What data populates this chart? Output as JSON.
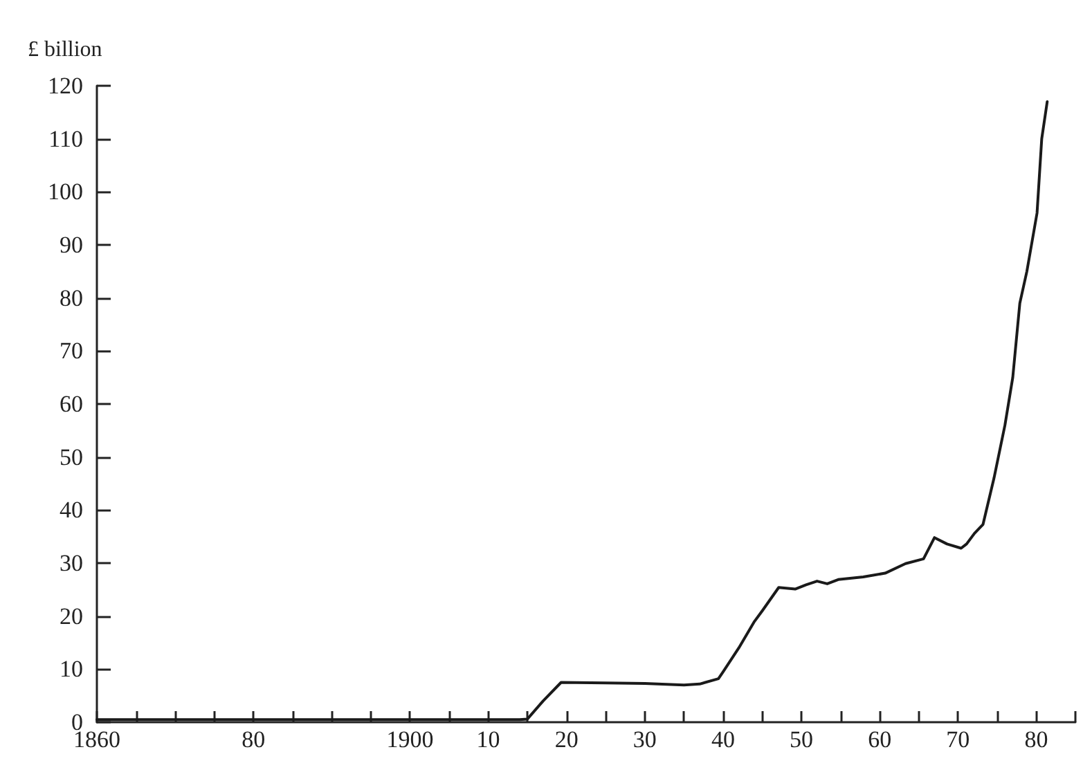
{
  "chart_data": {
    "type": "line",
    "ylabel": "£ billion",
    "x": [
      1860,
      1880,
      1900,
      1914,
      1915,
      1917,
      1919.3,
      1925,
      1930,
      1935,
      1937,
      1939.4,
      1940,
      1942,
      1944,
      1945,
      1947.1,
      1949.2,
      1950.6,
      1952,
      1953.3,
      1954.7,
      1957.9,
      1960.7,
      1963.3,
      1965.6,
      1967,
      1968.6,
      1970.4,
      1971.1,
      1972.1,
      1973.2,
      1974.6,
      1976,
      1977,
      1977.9,
      1978.8,
      1980.1,
      1980.7,
      1981.4
    ],
    "series": [
      {
        "color": "#1a1a1a",
        "values": [
          0.5,
          0.5,
          0.5,
          0.5,
          0.6,
          4,
          7.5,
          7.4,
          7.3,
          7.0,
          7.2,
          8.2,
          9.5,
          14,
          19,
          21,
          25.4,
          25.1,
          25.9,
          26.6,
          26.1,
          26.9,
          27.4,
          28.1,
          29.9,
          30.8,
          34.8,
          33.6,
          32.8,
          33.6,
          35.6,
          37.3,
          46,
          56,
          65,
          79,
          85,
          96,
          110,
          117
        ]
      }
    ],
    "xlim": [
      1860,
      1985
    ],
    "xticks": [
      1860,
      {
        "value": 1865,
        "label": null
      },
      {
        "value": 1870,
        "label": null
      },
      {
        "value": 1875,
        "label": null
      },
      {
        "value": 1880,
        "label": "80"
      },
      {
        "value": 1885,
        "label": null
      },
      {
        "value": 1890,
        "label": null
      },
      {
        "value": 1895,
        "label": null
      },
      1900,
      {
        "value": 1905,
        "label": null
      },
      {
        "value": 1910,
        "label": "10"
      },
      {
        "value": 1915,
        "label": null
      },
      {
        "value": 1920,
        "label": "20"
      },
      {
        "value": 1925,
        "label": null
      },
      {
        "value": 1930,
        "label": "30"
      },
      {
        "value": 1935,
        "label": null
      },
      {
        "value": 1940,
        "label": "40"
      },
      {
        "value": 1945,
        "label": null
      },
      {
        "value": 1950,
        "label": "50"
      },
      {
        "value": 1955,
        "label": null
      },
      {
        "value": 1960,
        "label": "60"
      },
      {
        "value": 1965,
        "label": null
      },
      {
        "value": 1970,
        "label": "70"
      },
      {
        "value": 1975,
        "label": null
      },
      {
        "value": 1980,
        "label": "80"
      },
      {
        "value": 1985,
        "label": null
      }
    ],
    "ylim": [
      0,
      120
    ],
    "yticks": [
      0,
      10,
      20,
      30,
      40,
      50,
      60,
      70,
      80,
      90,
      100,
      110,
      120
    ],
    "grid": false
  }
}
